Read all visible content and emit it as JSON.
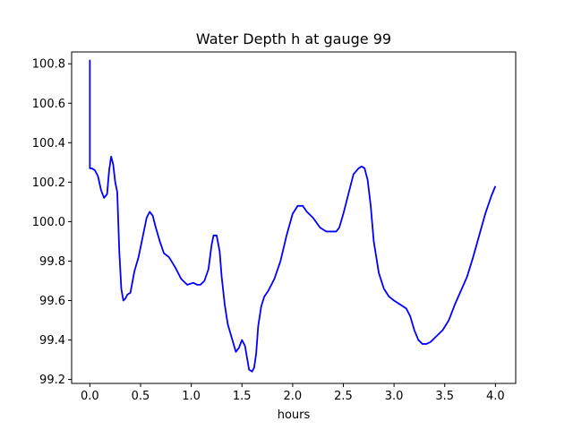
{
  "chart_data": {
    "type": "line",
    "title": "Water Depth h at gauge 99",
    "xlabel": "hours",
    "ylabel": "",
    "xlim": [
      -0.18,
      4.2
    ],
    "ylim": [
      99.18,
      100.86
    ],
    "xticks": [
      "0.0",
      "0.5",
      "1.0",
      "1.5",
      "2.0",
      "2.5",
      "3.0",
      "3.5",
      "4.0"
    ],
    "xtick_values": [
      0.0,
      0.5,
      1.0,
      1.5,
      2.0,
      2.5,
      3.0,
      3.5,
      4.0
    ],
    "yticks": [
      "99.2",
      "99.4",
      "99.6",
      "99.8",
      "100.0",
      "100.2",
      "100.4",
      "100.6",
      "100.8"
    ],
    "ytick_values": [
      99.2,
      99.4,
      99.6,
      99.8,
      100.0,
      100.2,
      100.4,
      100.6,
      100.8
    ],
    "grid": false,
    "series": [
      {
        "color": "#0000ff",
        "x": [
          0.0,
          0.0,
          0.0,
          0.02,
          0.05,
          0.08,
          0.11,
          0.14,
          0.17,
          0.19,
          0.21,
          0.23,
          0.25,
          0.27,
          0.29,
          0.31,
          0.33,
          0.35,
          0.37,
          0.4,
          0.44,
          0.48,
          0.52,
          0.56,
          0.59,
          0.62,
          0.65,
          0.69,
          0.73,
          0.78,
          0.84,
          0.9,
          0.96,
          1.02,
          1.06,
          1.09,
          1.13,
          1.17,
          1.2,
          1.22,
          1.25,
          1.28,
          1.3,
          1.33,
          1.36,
          1.4,
          1.44,
          1.47,
          1.5,
          1.53,
          1.55,
          1.57,
          1.6,
          1.62,
          1.64,
          1.66,
          1.69,
          1.72,
          1.76,
          1.82,
          1.88,
          1.94,
          2.0,
          2.05,
          2.1,
          2.14,
          2.2,
          2.27,
          2.33,
          2.39,
          2.43,
          2.46,
          2.5,
          2.55,
          2.6,
          2.65,
          2.68,
          2.71,
          2.74,
          2.77,
          2.8,
          2.85,
          2.9,
          2.95,
          3.0,
          3.06,
          3.12,
          3.16,
          3.2,
          3.24,
          3.28,
          3.32,
          3.36,
          3.42,
          3.48,
          3.54,
          3.6,
          3.66,
          3.72,
          3.78,
          3.84,
          3.9,
          3.96,
          4.0
        ],
        "y": [
          100.82,
          100.27,
          100.27,
          100.27,
          100.26,
          100.23,
          100.16,
          100.12,
          100.14,
          100.26,
          100.33,
          100.29,
          100.2,
          100.15,
          99.85,
          99.66,
          99.6,
          99.61,
          99.63,
          99.64,
          99.75,
          99.82,
          99.92,
          100.02,
          100.05,
          100.03,
          99.97,
          99.9,
          99.84,
          99.82,
          99.77,
          99.71,
          99.68,
          99.69,
          99.68,
          99.68,
          99.7,
          99.76,
          99.88,
          99.93,
          99.93,
          99.85,
          99.72,
          99.58,
          99.48,
          99.41,
          99.34,
          99.36,
          99.4,
          99.37,
          99.31,
          99.25,
          99.24,
          99.26,
          99.33,
          99.47,
          99.57,
          99.62,
          99.65,
          99.71,
          99.8,
          99.93,
          100.04,
          100.08,
          100.08,
          100.05,
          100.02,
          99.97,
          99.95,
          99.95,
          99.95,
          99.97,
          100.04,
          100.14,
          100.24,
          100.27,
          100.28,
          100.27,
          100.21,
          100.08,
          99.9,
          99.74,
          99.66,
          99.62,
          99.6,
          99.58,
          99.56,
          99.52,
          99.45,
          99.4,
          99.38,
          99.38,
          99.39,
          99.42,
          99.45,
          99.5,
          99.58,
          99.65,
          99.72,
          99.82,
          99.93,
          100.04,
          100.13,
          100.18
        ]
      }
    ]
  }
}
